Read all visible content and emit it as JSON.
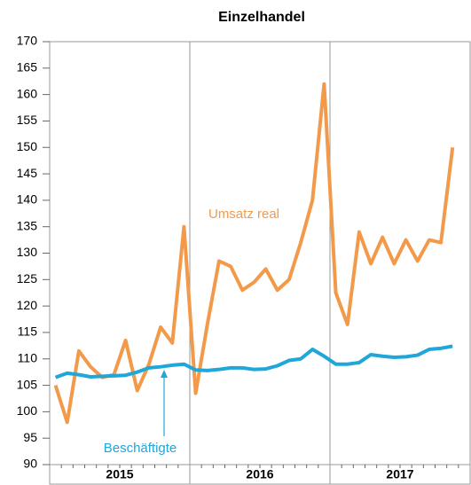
{
  "chart_data": {
    "type": "line",
    "title": "Einzelhandel",
    "years": [
      "2015",
      "2016",
      "2017"
    ],
    "series": [
      {
        "name": "Umsatz real",
        "color": "#f39a4a",
        "values": [
          105,
          98,
          111.5,
          108.5,
          106.5,
          107,
          113.5,
          104,
          109,
          116,
          113,
          135,
          103.5,
          116.5,
          128.5,
          127.5,
          123,
          124.5,
          127,
          123,
          125,
          132,
          140,
          162,
          122.5,
          116.5,
          134,
          128,
          133,
          128,
          132.5,
          128.5,
          132.5,
          132,
          150
        ]
      },
      {
        "name": "Beschäftigte",
        "color": "#1ea7d8",
        "values": [
          106.5,
          107.3,
          107,
          106.6,
          106.7,
          106.8,
          106.9,
          107.5,
          108.3,
          108.5,
          108.8,
          109,
          107.9,
          107.8,
          108,
          108.3,
          108.3,
          108,
          108.1,
          108.7,
          109.7,
          110,
          111.8,
          110.5,
          109,
          109,
          109.3,
          110.8,
          110.5,
          110.3,
          110.4,
          110.7,
          111.8,
          112,
          112.4
        ]
      }
    ],
    "ylim": [
      90,
      170
    ],
    "yticks": [
      90,
      95,
      100,
      105,
      110,
      115,
      120,
      125,
      130,
      135,
      140,
      145,
      150,
      155,
      160,
      165,
      170
    ]
  }
}
